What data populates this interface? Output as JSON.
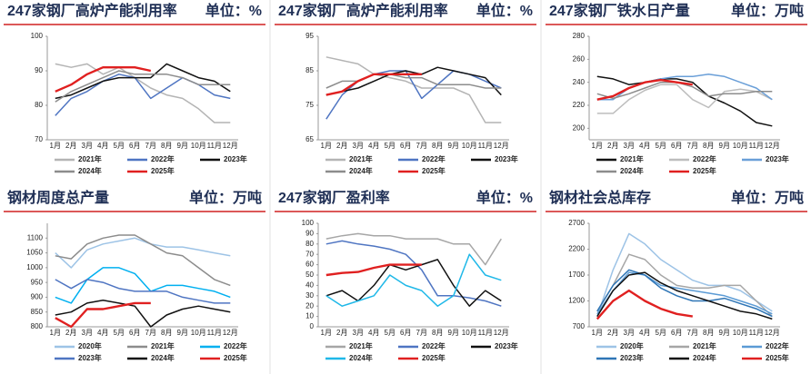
{
  "chart_data": [
    {
      "type": "line",
      "title": "247家钢厂高炉产能利用率",
      "unit": "单位：%",
      "categories": [
        "1月",
        "2月",
        "3月",
        "4月",
        "5月",
        "6月",
        "7月",
        "8月",
        "9月",
        "10月",
        "11月",
        "12月"
      ],
      "ylim": [
        70,
        100
      ],
      "yticks": [
        70,
        80,
        90,
        100
      ],
      "legend": "bottom",
      "series": [
        {
          "name": "2021年",
          "color": "#b4b4b4",
          "values": [
            92,
            91,
            92,
            89,
            91,
            88,
            85,
            83,
            82,
            79,
            75,
            75
          ]
        },
        {
          "name": "2022年",
          "color": "#4f75c2",
          "values": [
            77,
            82,
            84,
            87,
            89,
            88,
            82,
            85,
            88,
            86,
            83,
            82
          ]
        },
        {
          "name": "2023年",
          "color": "#111111",
          "values": [
            82,
            83,
            85,
            87,
            88,
            88,
            88,
            92,
            90,
            88,
            87,
            84
          ]
        },
        {
          "name": "2024年",
          "color": "#8c8c8c",
          "values": [
            81,
            84,
            86,
            88,
            90,
            89,
            89,
            89,
            88,
            86,
            86,
            86
          ]
        },
        {
          "name": "2025年",
          "color": "#e02020",
          "values": [
            84,
            86,
            89,
            91,
            91,
            91,
            90,
            null,
            null,
            null,
            null,
            null
          ]
        }
      ]
    },
    {
      "type": "line",
      "title": "247家钢厂高炉产能利用率",
      "unit": "单位：%",
      "categories": [
        "1月",
        "2月",
        "3月",
        "4月",
        "5月",
        "6月",
        "7月",
        "8月",
        "9月",
        "10月",
        "11月",
        "12月"
      ],
      "ylim": [
        65,
        95
      ],
      "yticks": [
        65,
        75,
        85,
        95
      ],
      "legend": "bottom",
      "series": [
        {
          "name": "2021年",
          "color": "#b4b4b4",
          "values": [
            89,
            88,
            87,
            84,
            83,
            82,
            80,
            80,
            80,
            78,
            70,
            70
          ]
        },
        {
          "name": "2022年",
          "color": "#4f75c2",
          "values": [
            71,
            78,
            82,
            84,
            85,
            85,
            77,
            81,
            85,
            84,
            82,
            80
          ]
        },
        {
          "name": "2023年",
          "color": "#111111",
          "values": [
            78,
            79,
            80,
            82,
            84,
            85,
            84,
            86,
            85,
            84,
            83,
            78
          ]
        },
        {
          "name": "2024年",
          "color": "#8c8c8c",
          "values": [
            80,
            82,
            82,
            84,
            84,
            83,
            83,
            81,
            81,
            81,
            80,
            80
          ]
        },
        {
          "name": "2025年",
          "color": "#e02020",
          "values": [
            78,
            79,
            82,
            84,
            84,
            84,
            84,
            null,
            null,
            null,
            null,
            null
          ]
        }
      ]
    },
    {
      "type": "line",
      "title": "247家钢厂铁水日产量",
      "unit": "单位：万吨",
      "categories": [
        "1月",
        "2月",
        "3月",
        "4月",
        "5月",
        "6月",
        "7月",
        "8月",
        "9月",
        "10月",
        "11月",
        "12月"
      ],
      "ylim": [
        190,
        280
      ],
      "yticks": [
        200,
        220,
        240,
        260,
        280
      ],
      "legend": "bottom",
      "series": [
        {
          "name": "2021年",
          "color": "#111111",
          "values": [
            245,
            243,
            238,
            240,
            243,
            243,
            240,
            228,
            222,
            215,
            205,
            202
          ]
        },
        {
          "name": "2022年",
          "color": "#bdbdbd",
          "values": [
            213,
            213,
            225,
            233,
            238,
            238,
            225,
            218,
            232,
            234,
            232,
            225
          ]
        },
        {
          "name": "2023年",
          "color": "#6a9fd8",
          "values": [
            225,
            225,
            235,
            240,
            243,
            245,
            245,
            247,
            245,
            240,
            235,
            225
          ]
        },
        {
          "name": "2024年",
          "color": "#8c8c8c",
          "values": [
            230,
            226,
            230,
            235,
            240,
            240,
            236,
            228,
            230,
            230,
            232,
            232
          ]
        },
        {
          "name": "2025年",
          "color": "#e02020",
          "values": [
            225,
            228,
            235,
            240,
            242,
            240,
            238,
            null,
            null,
            null,
            null,
            null
          ]
        }
      ]
    },
    {
      "type": "line",
      "title": "钢材周度总产量",
      "unit": "单位：万吨",
      "categories": [
        "1月",
        "2月",
        "3月",
        "4月",
        "5月",
        "6月",
        "7月",
        "8月",
        "9月",
        "10月",
        "11月",
        "12月"
      ],
      "ylim": [
        800,
        1150
      ],
      "yticks": [
        800,
        850,
        900,
        950,
        1000,
        1050,
        1100
      ],
      "legend": "bottom",
      "series": [
        {
          "name": "2020年",
          "color": "#9dc3e6",
          "values": [
            1050,
            1000,
            1060,
            1080,
            1090,
            1100,
            1080,
            1070,
            1070,
            1060,
            1050,
            1040
          ]
        },
        {
          "name": "2021年",
          "color": "#8c8c8c",
          "values": [
            1040,
            1030,
            1080,
            1100,
            1110,
            1110,
            1080,
            1050,
            1040,
            1000,
            960,
            940
          ]
        },
        {
          "name": "2022年",
          "color": "#00b0f0",
          "values": [
            900,
            880,
            960,
            1000,
            1000,
            980,
            920,
            940,
            940,
            930,
            920,
            900
          ]
        },
        {
          "name": "2023年",
          "color": "#4f75c2",
          "values": [
            960,
            930,
            960,
            950,
            930,
            920,
            920,
            920,
            900,
            890,
            880,
            880
          ]
        },
        {
          "name": "2024年",
          "color": "#111111",
          "values": [
            840,
            850,
            880,
            890,
            880,
            870,
            800,
            840,
            860,
            870,
            860,
            850
          ]
        },
        {
          "name": "2025年",
          "color": "#e02020",
          "values": [
            830,
            800,
            860,
            860,
            870,
            880,
            880,
            null,
            null,
            null,
            null,
            null
          ]
        }
      ]
    },
    {
      "type": "line",
      "title": "247家钢厂盈利率",
      "unit": "单位：%",
      "categories": [
        "1月",
        "2月",
        "3月",
        "4月",
        "5月",
        "6月",
        "7月",
        "8月",
        "9月",
        "10月",
        "11月",
        "12月"
      ],
      "ylim": [
        0,
        100
      ],
      "yticks": [
        0,
        10,
        20,
        30,
        40,
        50,
        60,
        70,
        80,
        90,
        100
      ],
      "legend": "bottom",
      "series": [
        {
          "name": "2021年",
          "color": "#a6a6a6",
          "values": [
            85,
            88,
            90,
            88,
            88,
            85,
            85,
            85,
            80,
            80,
            60,
            85
          ]
        },
        {
          "name": "2022年",
          "color": "#4f75c2",
          "values": [
            80,
            83,
            80,
            78,
            75,
            70,
            55,
            30,
            30,
            28,
            25,
            20
          ]
        },
        {
          "name": "2023年",
          "color": "#111111",
          "values": [
            30,
            35,
            25,
            40,
            60,
            55,
            60,
            65,
            40,
            20,
            35,
            25
          ]
        },
        {
          "name": "2024年",
          "color": "#1fb8e8",
          "values": [
            30,
            20,
            25,
            30,
            50,
            40,
            35,
            20,
            30,
            70,
            50,
            45
          ]
        },
        {
          "name": "2025年",
          "color": "#e02020",
          "values": [
            50,
            52,
            53,
            57,
            60,
            60,
            60,
            null,
            null,
            null,
            null,
            null
          ]
        }
      ]
    },
    {
      "type": "line",
      "title": "钢材社会总库存",
      "unit": "单位：万吨",
      "categories": [
        "1月",
        "2月",
        "3月",
        "4月",
        "5月",
        "6月",
        "7月",
        "8月",
        "9月",
        "10月",
        "11月",
        "12月"
      ],
      "ylim": [
        700,
        2700
      ],
      "yticks": [
        700,
        1200,
        1700,
        2200,
        2700
      ],
      "legend": "bottom",
      "series": [
        {
          "name": "2020年",
          "color": "#9dc3e6",
          "values": [
            900,
            1800,
            2500,
            2300,
            2000,
            1800,
            1600,
            1500,
            1500,
            1400,
            1200,
            1000
          ]
        },
        {
          "name": "2021年",
          "color": "#a6a6a6",
          "values": [
            1000,
            1500,
            2100,
            2000,
            1700,
            1500,
            1450,
            1450,
            1500,
            1500,
            1200,
            900
          ]
        },
        {
          "name": "2022年",
          "color": "#5b9bd5",
          "values": [
            950,
            1400,
            1750,
            1700,
            1500,
            1450,
            1400,
            1350,
            1300,
            1200,
            1100,
            950
          ]
        },
        {
          "name": "2023年",
          "color": "#2e75b6",
          "values": [
            1000,
            1500,
            1800,
            1700,
            1450,
            1300,
            1200,
            1200,
            1250,
            1150,
            1050,
            900
          ]
        },
        {
          "name": "2024年",
          "color": "#111111",
          "values": [
            900,
            1400,
            1700,
            1750,
            1550,
            1400,
            1300,
            1200,
            1100,
            1000,
            950,
            850
          ]
        },
        {
          "name": "2025年",
          "color": "#e02020",
          "values": [
            850,
            1200,
            1400,
            1200,
            1050,
            950,
            900,
            null,
            null,
            null,
            null,
            null
          ]
        }
      ]
    }
  ]
}
